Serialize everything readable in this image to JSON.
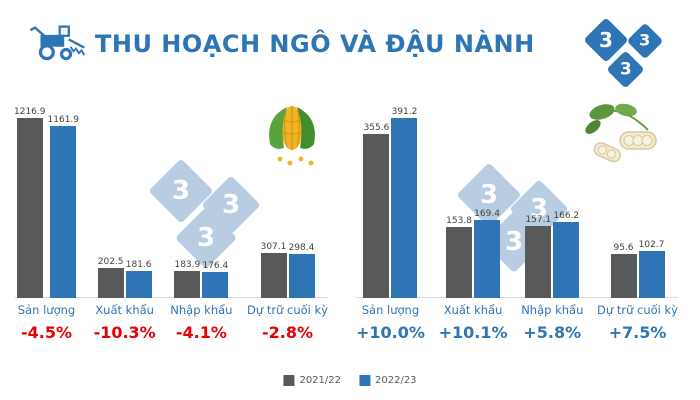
{
  "header": {
    "title": "THU HOẠCH NGÔ VÀ ĐẬU NÀNH"
  },
  "logo": {
    "digit": "3"
  },
  "colors": {
    "brand_blue": "#2e75b6",
    "bar_gray": "#58595b",
    "bar_blue": "#2e75b6",
    "negative_red": "#e60000",
    "watermark_blue": "#b9cde2"
  },
  "legend": [
    {
      "label": "2021/22",
      "color": "#58595b"
    },
    {
      "label": "2022/23",
      "color": "#2e75b6"
    }
  ],
  "chart_data": [
    {
      "type": "bar",
      "title": "Ngô (corn)",
      "categories": [
        "Sản lượng",
        "Xuất khẩu",
        "Nhập khẩu",
        "Dự trữ cuối kỳ"
      ],
      "series": [
        {
          "name": "2021/22",
          "values": [
            1216.9,
            202.5,
            183.9,
            307.1
          ]
        },
        {
          "name": "2022/23",
          "values": [
            1161.9,
            181.6,
            176.4,
            298.4
          ]
        }
      ],
      "changes": [
        "-4.5%",
        "-10.3%",
        "-4.1%",
        "-2.8%"
      ],
      "change_color": "#e60000",
      "ylim": [
        0,
        1250
      ],
      "grid": false,
      "legend_position": "bottom-center"
    },
    {
      "type": "bar",
      "title": "Đậu nành (soybean)",
      "categories": [
        "Sản lượng",
        "Xuất khẩu",
        "Nhập khẩu",
        "Dự trữ cuối kỳ"
      ],
      "series": [
        {
          "name": "2021/22",
          "values": [
            355.6,
            153.8,
            157.1,
            95.6
          ]
        },
        {
          "name": "2022/23",
          "values": [
            391.2,
            169.4,
            166.2,
            102.7
          ]
        }
      ],
      "changes": [
        "+10.0%",
        "+10.1%",
        "+5.8%",
        "+7.5%"
      ],
      "change_color": "#2e75b6",
      "ylim": [
        0,
        400
      ],
      "grid": false,
      "legend_position": "bottom-center"
    }
  ]
}
